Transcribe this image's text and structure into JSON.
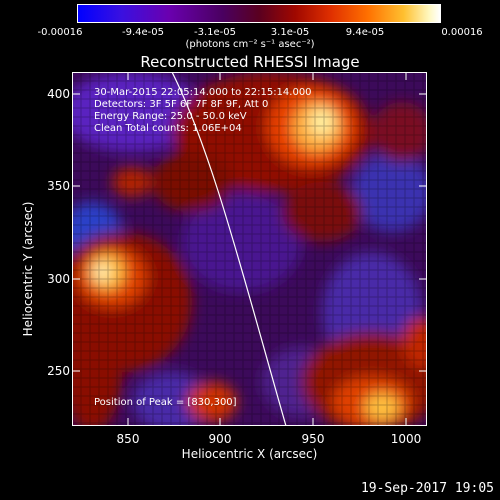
{
  "colorbar": {
    "tick_labels": [
      "-0.00016",
      "-9.4e-05",
      "-3.1e-05",
      "3.1e-05",
      "9.4e-05",
      "0.00016"
    ],
    "units": "(photons cm⁻² s⁻¹ asec⁻²)",
    "colors": [
      "#1010ff",
      "#6a00c8",
      "#5a0050",
      "#a01800",
      "#ff6000",
      "#ffe060",
      "#ffffff"
    ]
  },
  "title": "Reconstructed RHESSI Image",
  "annotations": {
    "time_range": "30-Mar-2015 22:05:14.000 to 22:15:14.000",
    "detectors": "Detectors: 3F 5F 6F 7F 8F 9F, Att 0",
    "energy_range": "Energy Range: 25.0 - 50.0 keV",
    "algorithm": "Clean   Total counts: 1.06E+04",
    "peak": "Position of Peak = [830,300]"
  },
  "axes": {
    "xlabel": "Heliocentric X (arcsec)",
    "ylabel": "Heliocentric Y (arcsec)",
    "xticks": [
      "850",
      "900",
      "950",
      "1000"
    ],
    "yticks": [
      "400",
      "350",
      "300",
      "250"
    ],
    "xlim": [
      820,
      1010
    ],
    "ylim": [
      220,
      412
    ]
  },
  "timestamp": "19-Sep-2017 19:05"
}
